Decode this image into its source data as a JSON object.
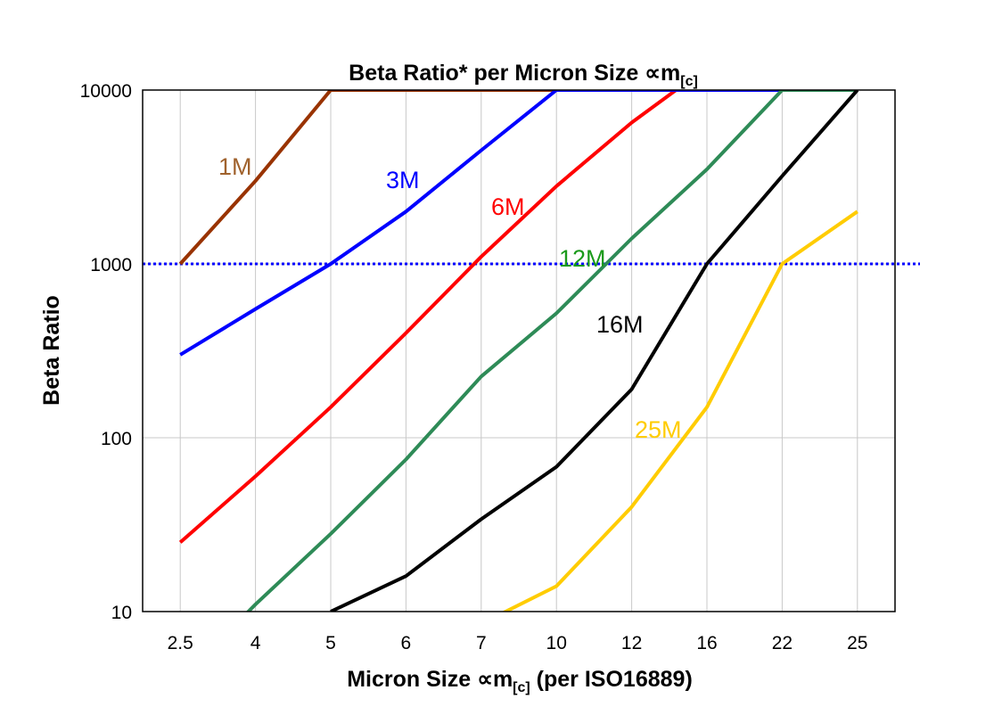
{
  "chart_data": {
    "type": "line",
    "title": "Beta Ratio* per Micron Size ∝m",
    "title_subscript": "[c]",
    "xlabel": "Micron Size ∝m",
    "xlabel_subscript": "[c]",
    "xlabel_suffix": " (per ISO16889)",
    "ylabel": "Beta Ratio",
    "y_scale": "log",
    "ylim": [
      10,
      10000
    ],
    "y_ticks": [
      "10",
      "100",
      "1000",
      "10000"
    ],
    "grid": true,
    "categories": [
      "2.5",
      "4",
      "5",
      "6",
      "7",
      "10",
      "12",
      "16",
      "22",
      "25"
    ],
    "reference_line": {
      "y": 1000,
      "style": "dotted",
      "color": "#0000FF"
    },
    "series": [
      {
        "name": "1M",
        "color": "#993300",
        "label_color": "#A0622D",
        "values": [
          1000,
          3000,
          10000,
          10000,
          10000,
          10000,
          null,
          null,
          null,
          null
        ]
      },
      {
        "name": "6M",
        "color": "#FF0000",
        "label_color": "#FF0000",
        "values": [
          25,
          60,
          150,
          400,
          1100,
          2800,
          6500,
          13500,
          null,
          null
        ]
      },
      {
        "name": "3M",
        "color": "#0000FF",
        "label_color": "#0000FF",
        "values": [
          300,
          550,
          1000,
          2000,
          4500,
          10000,
          10000,
          10000,
          10000,
          null
        ]
      },
      {
        "name": "12M",
        "color": "#2E8B57",
        "label_color": "#1A9A1A",
        "values": [
          4,
          11,
          28,
          75,
          225,
          520,
          1400,
          3500,
          10000,
          10000
        ]
      },
      {
        "name": "16M",
        "color": "#000000",
        "label_color": "#000000",
        "values": [
          null,
          null,
          10,
          16,
          34,
          68,
          190,
          1000,
          3200,
          10000
        ]
      },
      {
        "name": "25M",
        "color": "#FFCC00",
        "label_color": "#FFCC00",
        "values": [
          null,
          null,
          null,
          null,
          8.5,
          14,
          40,
          150,
          1000,
          2000
        ]
      }
    ]
  }
}
